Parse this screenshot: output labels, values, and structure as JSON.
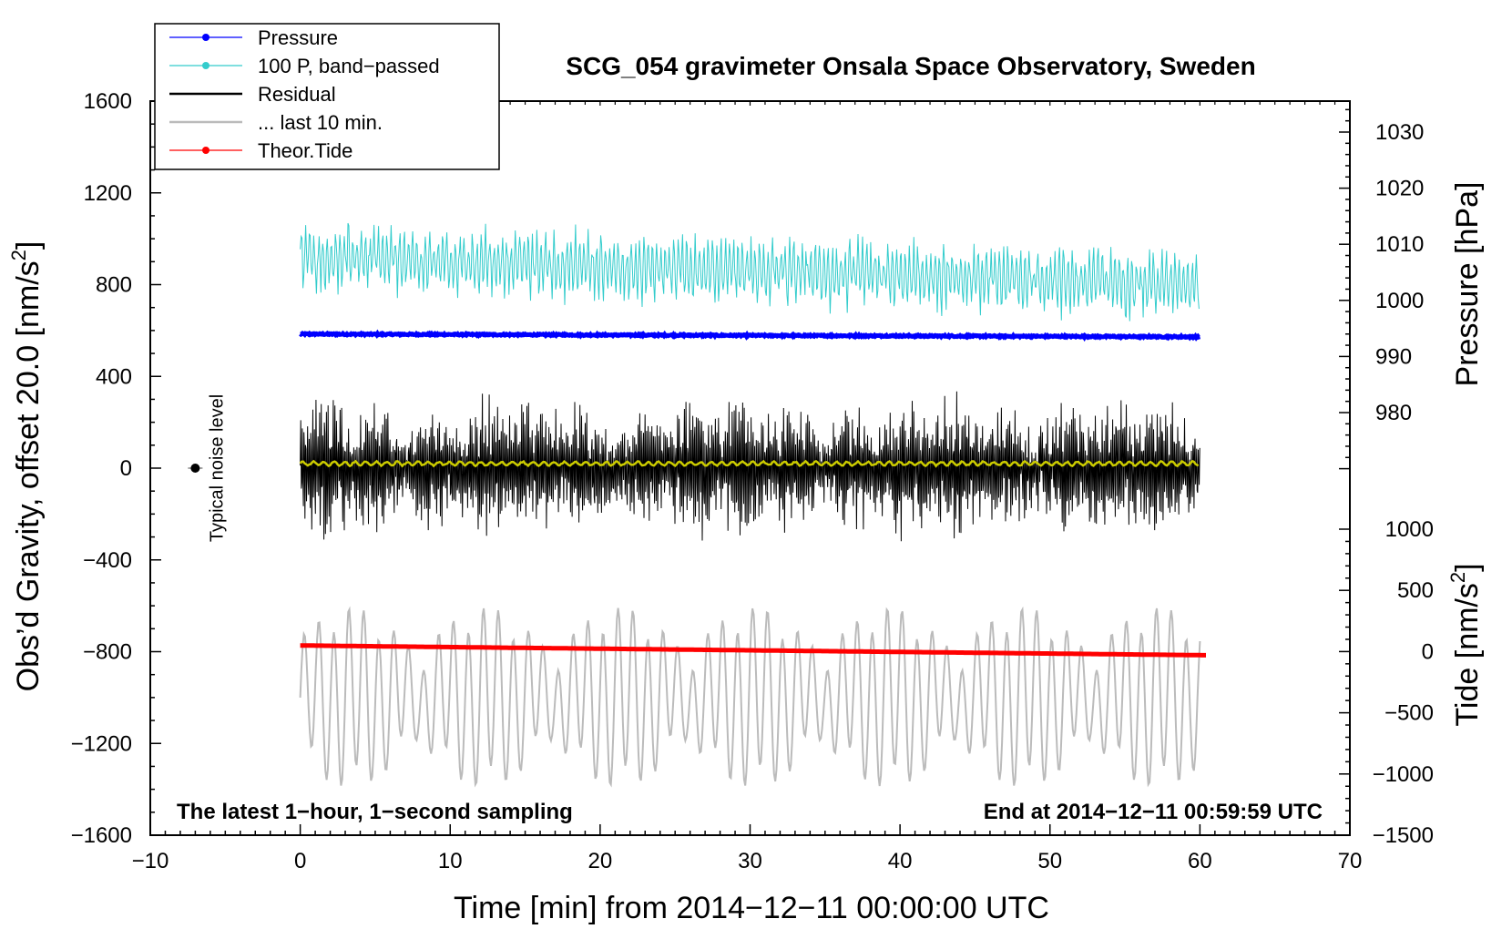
{
  "chart_data": {
    "type": "line",
    "title": "SCG_054 gravimeter Onsala Space Observatory, Sweden",
    "xlabel": "Time [min] from 2014−12−11 00:00:00 UTC",
    "ylabel_left": "Obs’d Gravity, offset 20.0 [nm/s",
    "ylabel_left_sup": "2",
    "ylabel_left_end": "]",
    "ylabel_pressure": "Pressure [hPa]",
    "ylabel_tide": "Tide [nm/s",
    "ylabel_tide_sup": "2",
    "ylabel_tide_end": "]",
    "xlim": [
      -10,
      70
    ],
    "ylim_left": [
      -1600,
      1600
    ],
    "pressure_range": [
      970,
      1035
    ],
    "tide_range": [
      -1500,
      1000
    ],
    "x_ticks": [
      {
        "v": -10,
        "label": "−10"
      },
      {
        "v": 0,
        "label": "0"
      },
      {
        "v": 10,
        "label": "10"
      },
      {
        "v": 20,
        "label": "20"
      },
      {
        "v": 30,
        "label": "30"
      },
      {
        "v": 40,
        "label": "40"
      },
      {
        "v": 50,
        "label": "50"
      },
      {
        "v": 60,
        "label": "60"
      },
      {
        "v": 70,
        "label": "70"
      }
    ],
    "y_left_ticks": [
      {
        "v": 1600,
        "label": "1600"
      },
      {
        "v": 1200,
        "label": "1200"
      },
      {
        "v": 800,
        "label": "800"
      },
      {
        "v": 400,
        "label": "400"
      },
      {
        "v": 0,
        "label": "0"
      },
      {
        "v": -400,
        "label": "−400"
      },
      {
        "v": -800,
        "label": "−800"
      },
      {
        "v": -1200,
        "label": "−1200"
      },
      {
        "v": -1600,
        "label": "−1600"
      }
    ],
    "pressure_ticks": [
      {
        "v": 1030,
        "label": "1030"
      },
      {
        "v": 1020,
        "label": "1020"
      },
      {
        "v": 1010,
        "label": "1010"
      },
      {
        "v": 1000,
        "label": "1000"
      },
      {
        "v": 990,
        "label": "990"
      },
      {
        "v": 980,
        "label": "980"
      }
    ],
    "tide_ticks": [
      {
        "v": 1000,
        "label": "1000"
      },
      {
        "v": 500,
        "label": "500"
      },
      {
        "v": 0,
        "label": "0"
      },
      {
        "v": -500,
        "label": "−500"
      },
      {
        "v": -1000,
        "label": "−1000"
      },
      {
        "v": -1500,
        "label": "−1500"
      }
    ],
    "legend": [
      {
        "label": "Pressure",
        "color": "#0000ff",
        "marker": true
      },
      {
        "label": "100 P, band−passed",
        "color": "#33cccc",
        "marker": true
      },
      {
        "label": "Residual",
        "color": "#000000",
        "marker": false
      },
      {
        "label": "... last 10 min.",
        "color": "#bbbbbb",
        "marker": false
      },
      {
        "label": "Theor.Tide",
        "color": "#ff0000",
        "marker": true
      }
    ],
    "series": [
      {
        "name": "Pressure",
        "axis": "pressure",
        "color": "#0000ff",
        "x_start": 0,
        "x_end": 60,
        "start": 994,
        "end": 993.5,
        "noise": 0.25
      },
      {
        "name": "100 P, band−passed",
        "axis": "left",
        "color": "#33cccc",
        "x_start": 0,
        "x_end": 60,
        "center_start": 920,
        "center_end": 800,
        "amplitude": 120
      },
      {
        "name": "Residual",
        "axis": "left",
        "color": "#000000",
        "x_start": 0,
        "x_end": 60,
        "center": 0,
        "amplitude": 260
      },
      {
        "name": "Residual (smoothed)",
        "axis": "left",
        "color": "#cccc00",
        "x_start": 0,
        "x_end": 60,
        "center": 20,
        "amplitude": 8
      },
      {
        "name": "... last 10 min.",
        "axis": "left",
        "color": "#bbbbbb",
        "x_start": 0,
        "x_end": 60,
        "center": -1000,
        "amplitude": 300
      },
      {
        "name": "Theor.Tide",
        "axis": "tide",
        "color": "#ff0000",
        "x_start": 0,
        "x_end": 60.5,
        "start": 50,
        "end": -30
      }
    ],
    "noise_marker": {
      "x": -7,
      "y": 0,
      "label": "Typical noise level"
    },
    "note_left": "The latest 1−hour, 1−second sampling",
    "note_right": "End at 2014−12−11 00:59:59 UTC"
  }
}
